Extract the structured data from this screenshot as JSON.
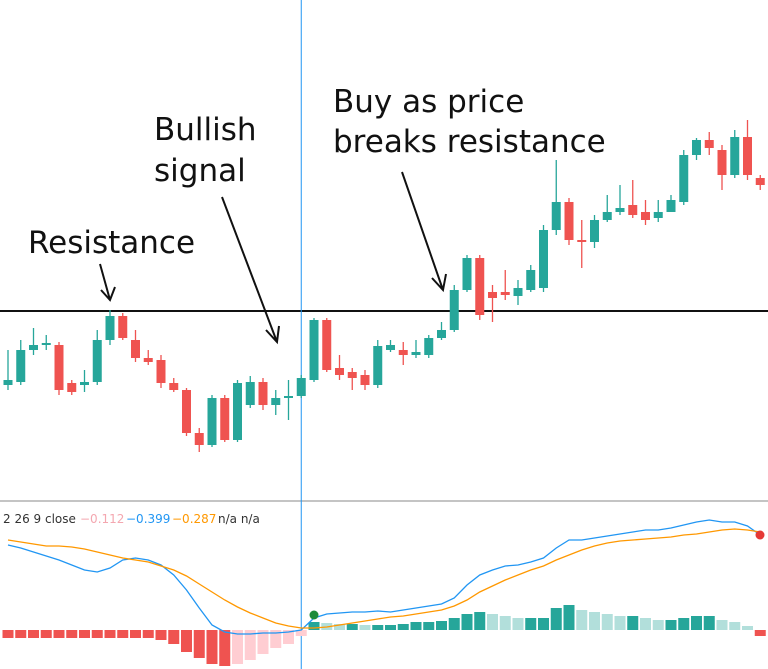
{
  "chart_data": [
    {
      "type": "candlestick",
      "up_color": "#26a69a",
      "down_color": "#ef5350",
      "ylim": [
        0,
        500
      ],
      "resistance_level": 189,
      "crosshair_index": 23,
      "annotations": [
        {
          "lines": [
            "Resistance"
          ]
        },
        {
          "lines": [
            "Bullish",
            "signal"
          ]
        },
        {
          "lines": [
            "Buy as price",
            "breaks resistance"
          ]
        }
      ],
      "open": [
        115,
        118,
        150,
        155,
        155,
        117,
        115,
        118,
        160,
        184,
        160,
        142,
        140,
        117,
        110,
        67,
        55,
        102,
        60,
        95,
        118,
        95,
        102,
        104,
        120,
        180,
        132,
        128,
        125,
        115,
        150,
        150,
        145,
        145,
        162,
        170,
        210,
        242,
        208,
        208,
        204,
        210,
        212,
        270,
        298,
        260,
        258,
        280,
        288,
        295,
        288,
        282,
        288,
        298,
        345,
        360,
        350,
        325,
        363,
        322
      ],
      "high": [
        150,
        160,
        172,
        165,
        158,
        120,
        130,
        170,
        190,
        187,
        170,
        150,
        145,
        122,
        112,
        72,
        105,
        105,
        120,
        124,
        122,
        110,
        120,
        125,
        182,
        182,
        145,
        132,
        130,
        160,
        160,
        158,
        160,
        165,
        178,
        215,
        245,
        245,
        215,
        230,
        220,
        235,
        275,
        340,
        302,
        280,
        285,
        305,
        315,
        320,
        300,
        300,
        305,
        350,
        362,
        368,
        355,
        370,
        380,
        325
      ],
      "low": [
        110,
        115,
        145,
        150,
        105,
        105,
        108,
        115,
        155,
        160,
        138,
        135,
        112,
        108,
        64,
        48,
        53,
        58,
        58,
        92,
        90,
        85,
        80,
        102,
        118,
        128,
        120,
        110,
        110,
        112,
        148,
        135,
        142,
        142,
        160,
        168,
        208,
        180,
        178,
        200,
        195,
        208,
        208,
        265,
        255,
        232,
        252,
        278,
        285,
        282,
        275,
        278,
        288,
        295,
        340,
        345,
        310,
        322,
        320,
        310
      ],
      "close": [
        120,
        150,
        155,
        157,
        110,
        108,
        118,
        160,
        184,
        162,
        142,
        138,
        117,
        110,
        67,
        55,
        102,
        60,
        117,
        118,
        95,
        102,
        104,
        122,
        180,
        130,
        125,
        122,
        115,
        154,
        155,
        145,
        148,
        162,
        170,
        210,
        242,
        185,
        202,
        205,
        212,
        230,
        270,
        298,
        260,
        258,
        280,
        288,
        292,
        285,
        280,
        288,
        300,
        345,
        360,
        352,
        325,
        363,
        325,
        315
      ]
    },
    {
      "type": "macd",
      "ylim": [
        -39,
        110
      ],
      "legend": {
        "label": "2 26 9 close",
        "histogram_value": "−0.112",
        "macd_value": "−0.399",
        "signal_value": "−0.287",
        "extra": "n/a n/a"
      },
      "histogram_colors": {
        "pos_rising": "#26a69a",
        "pos_falling": "#b2dfdb",
        "neg_falling": "#ef5350",
        "neg_rising": "#ffcdd2"
      },
      "histogram": [
        -8,
        -8,
        -8,
        -8,
        -8,
        -8,
        -8,
        -8,
        -8,
        -8,
        -8,
        -8,
        -10,
        -14,
        -22,
        -28,
        -34,
        -36,
        -34,
        -30,
        -24,
        -18,
        -14,
        -6,
        8,
        7,
        6,
        6,
        5,
        5,
        5,
        6,
        8,
        8,
        9,
        12,
        16,
        18,
        16,
        14,
        12,
        12,
        12,
        22,
        25,
        20,
        18,
        16,
        14,
        14,
        12,
        10,
        10,
        12,
        14,
        14,
        10,
        8,
        4,
        -6
      ],
      "series": [
        {
          "color": "#2196f3",
          "values": [
            85,
            82,
            78,
            74,
            70,
            65,
            60,
            58,
            62,
            70,
            72,
            70,
            65,
            55,
            40,
            22,
            5,
            -2,
            -4,
            -4,
            -3,
            -3,
            -2,
            0,
            12,
            16,
            17,
            18,
            18,
            19,
            18,
            20,
            22,
            24,
            26,
            32,
            45,
            55,
            60,
            64,
            65,
            68,
            72,
            82,
            90,
            90,
            92,
            94,
            96,
            98,
            100,
            100,
            102,
            105,
            108,
            110,
            108,
            108,
            104,
            95
          ]
        },
        {
          "color": "#ff9800",
          "values": [
            90,
            88,
            86,
            84,
            84,
            83,
            81,
            78,
            75,
            72,
            70,
            68,
            64,
            60,
            54,
            46,
            38,
            30,
            23,
            17,
            12,
            7,
            4,
            2,
            2,
            3,
            5,
            7,
            9,
            11,
            13,
            14,
            16,
            18,
            20,
            24,
            30,
            38,
            44,
            50,
            55,
            60,
            64,
            70,
            75,
            80,
            84,
            87,
            89,
            90,
            91,
            92,
            93,
            95,
            96,
            98,
            100,
            101,
            100,
            98
          ]
        }
      ]
    }
  ]
}
